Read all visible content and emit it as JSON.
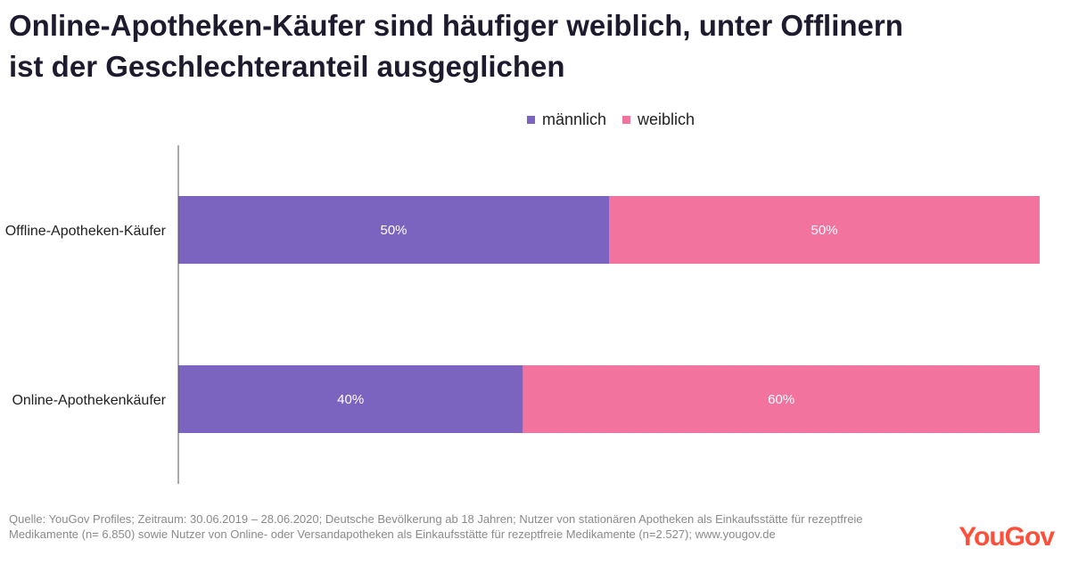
{
  "title": {
    "line1": "Online-Apotheken-Käufer sind häufiger weiblich, unter Offlinern",
    "line2": "ist der Geschlechteranteil ausgeglichen"
  },
  "legend": [
    {
      "label": "männlich",
      "color": "#7b64c0"
    },
    {
      "label": "weiblich",
      "color": "#f2739e"
    }
  ],
  "chart_data": {
    "type": "bar",
    "orientation": "horizontal",
    "stacked": true,
    "categories": [
      "Offline-Apotheken-Käufer",
      "Online-Apothekenkäufer"
    ],
    "series": [
      {
        "name": "männlich",
        "values": [
          50,
          40
        ],
        "color": "#7b64c0"
      },
      {
        "name": "weiblich",
        "values": [
          50,
          60
        ],
        "color": "#f2739e"
      }
    ],
    "value_labels": [
      [
        "50%",
        "40%"
      ],
      [
        "50%",
        "60%"
      ]
    ],
    "xlim": [
      0,
      100
    ],
    "unit": "%",
    "legend_position": "top-center",
    "grid": false
  },
  "footnote": {
    "line1": "Quelle: YouGov Profiles; Zeitraum: 30.06.2019 – 28.06.2020; Deutsche Bevölkerung ab 18 Jahren; Nutzer von stationären Apotheken als Einkaufsstätte für rezeptfreie",
    "line2": "Medikamente (n= 6.850) sowie Nutzer von Online- oder Versandapotheken als Einkaufsstätte für rezeptfreie Medikamente (n=2.527); www.yougov.de"
  },
  "logo": "YouGov"
}
